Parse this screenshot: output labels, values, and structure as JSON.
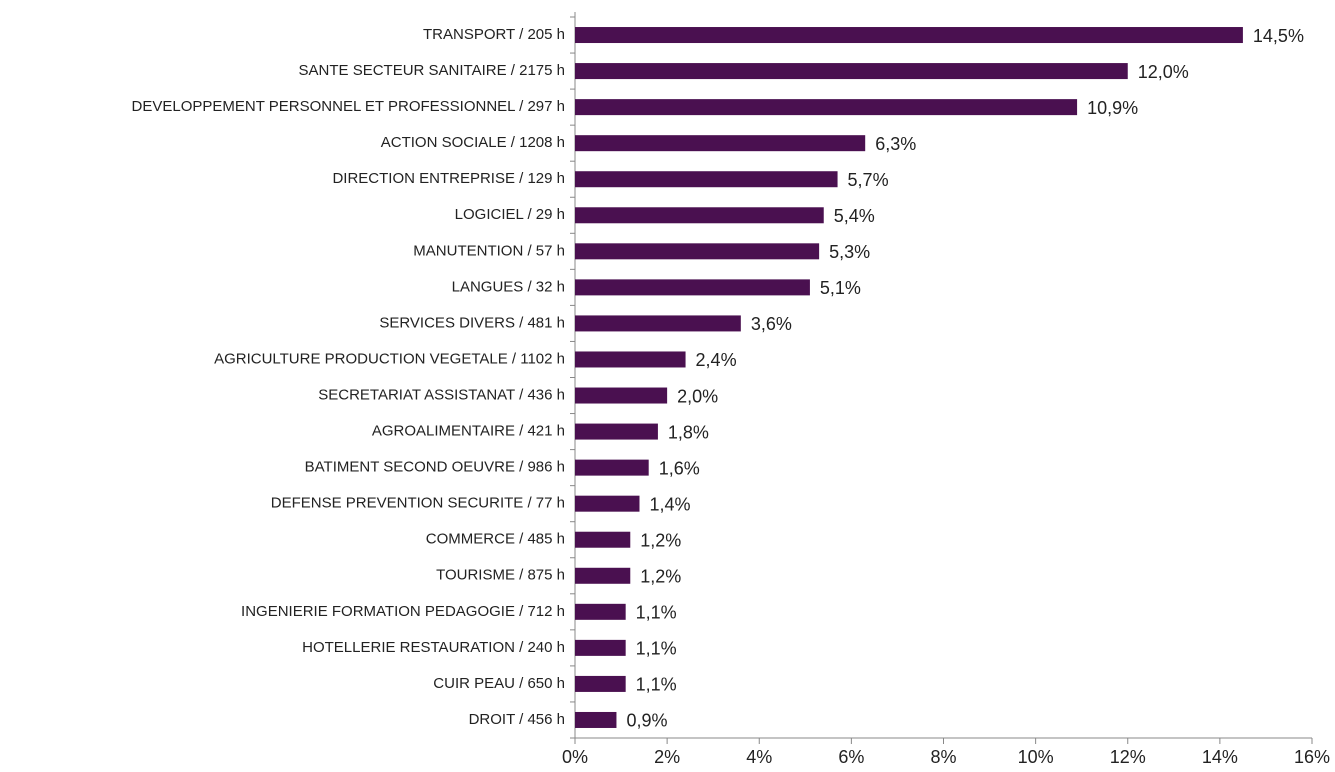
{
  "chart_data": {
    "type": "barh",
    "categories": [
      "TRANSPORT  / 205 h",
      "SANTE SECTEUR SANITAIRE  / 2175 h",
      "DEVELOPPEMENT PERSONNEL ET PROFESSIONNEL  / 297 h",
      "ACTION SOCIALE  / 1208 h",
      "DIRECTION ENTREPRISE  / 129 h",
      "LOGICIEL  / 29 h",
      "MANUTENTION  / 57 h",
      "LANGUES  / 32 h",
      "SERVICES DIVERS  / 481 h",
      "AGRICULTURE PRODUCTION VEGETALE  / 1102 h",
      "SECRETARIAT ASSISTANAT  / 436 h",
      "AGROALIMENTAIRE  / 421 h",
      "BATIMENT SECOND OEUVRE  / 986 h",
      "DEFENSE PREVENTION SECURITE  / 77 h",
      "COMMERCE  / 485 h",
      "TOURISME  / 875 h",
      "INGENIERIE FORMATION PEDAGOGIE  / 712 h",
      "HOTELLERIE RESTAURATION  / 240 h",
      "CUIR PEAU  / 650 h",
      "DROIT  / 456 h"
    ],
    "values": [
      14.5,
      12.0,
      10.9,
      6.3,
      5.7,
      5.4,
      5.3,
      5.1,
      3.6,
      2.4,
      2.0,
      1.8,
      1.6,
      1.4,
      1.2,
      1.2,
      1.1,
      1.1,
      1.1,
      0.9
    ],
    "value_labels": [
      "14,5%",
      "12,0%",
      "10,9%",
      "6,3%",
      "5,7%",
      "5,4%",
      "5,3%",
      "5,1%",
      "3,6%",
      "2,4%",
      "2,0%",
      "1,8%",
      "1,6%",
      "1,4%",
      "1,2%",
      "1,2%",
      "1,1%",
      "1,1%",
      "1,1%",
      "0,9%"
    ],
    "color": "#4a1050",
    "xlim": [
      0,
      16
    ],
    "xticks": [
      {
        "value": 0,
        "label": "0%"
      },
      {
        "value": 2,
        "label": "2%"
      },
      {
        "value": 4,
        "label": "4%"
      },
      {
        "value": 6,
        "label": "6%"
      },
      {
        "value": 8,
        "label": "8%"
      },
      {
        "value": 10,
        "label": "10%"
      },
      {
        "value": 12,
        "label": "12%"
      },
      {
        "value": 14,
        "label": "14%"
      },
      {
        "value": 16,
        "label": "16%"
      }
    ]
  }
}
